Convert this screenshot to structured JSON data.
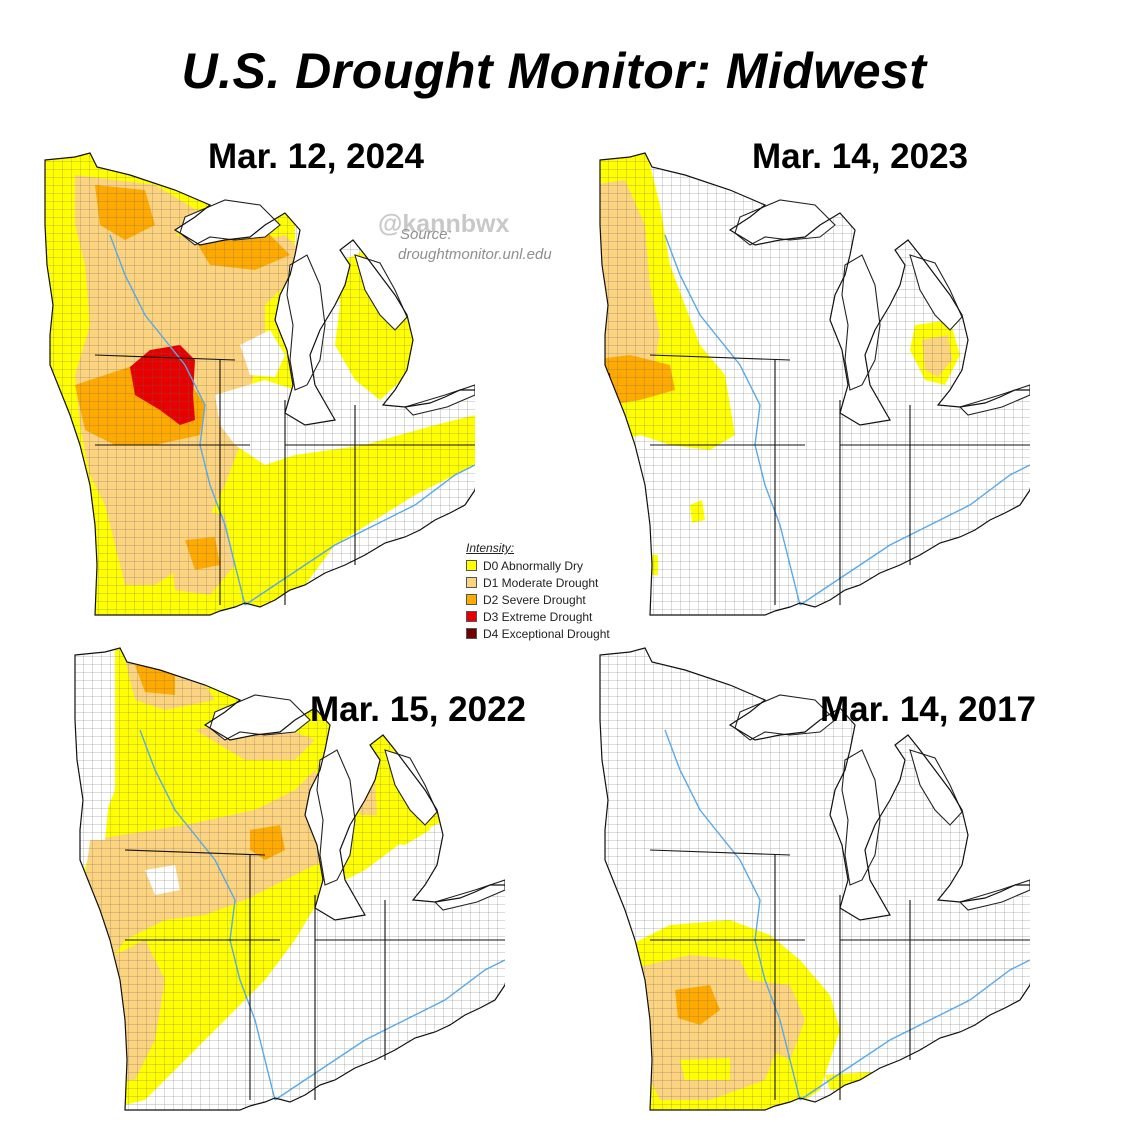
{
  "title": "U.S. Drought Monitor: Midwest",
  "watermark": "@kannbwx",
  "source_label": "Source:",
  "source_url": "droughtmonitor.unl.edu",
  "legend": {
    "title": "Intensity:",
    "items": [
      {
        "label": "D0 Abnormally Dry",
        "color": "#ffff00"
      },
      {
        "label": "D1 Moderate Drought",
        "color": "#fcd37f"
      },
      {
        "label": "D2 Severe Drought",
        "color": "#ffaa00"
      },
      {
        "label": "D3 Extreme Drought",
        "color": "#e60000"
      },
      {
        "label": "D4 Exceptional Drought",
        "color": "#730000"
      }
    ]
  },
  "maps": [
    {
      "label": "Mar. 12, 2024"
    },
    {
      "label": "Mar. 14, 2023"
    },
    {
      "label": "Mar. 15, 2022"
    },
    {
      "label": "Mar. 14, 2017"
    }
  ]
}
